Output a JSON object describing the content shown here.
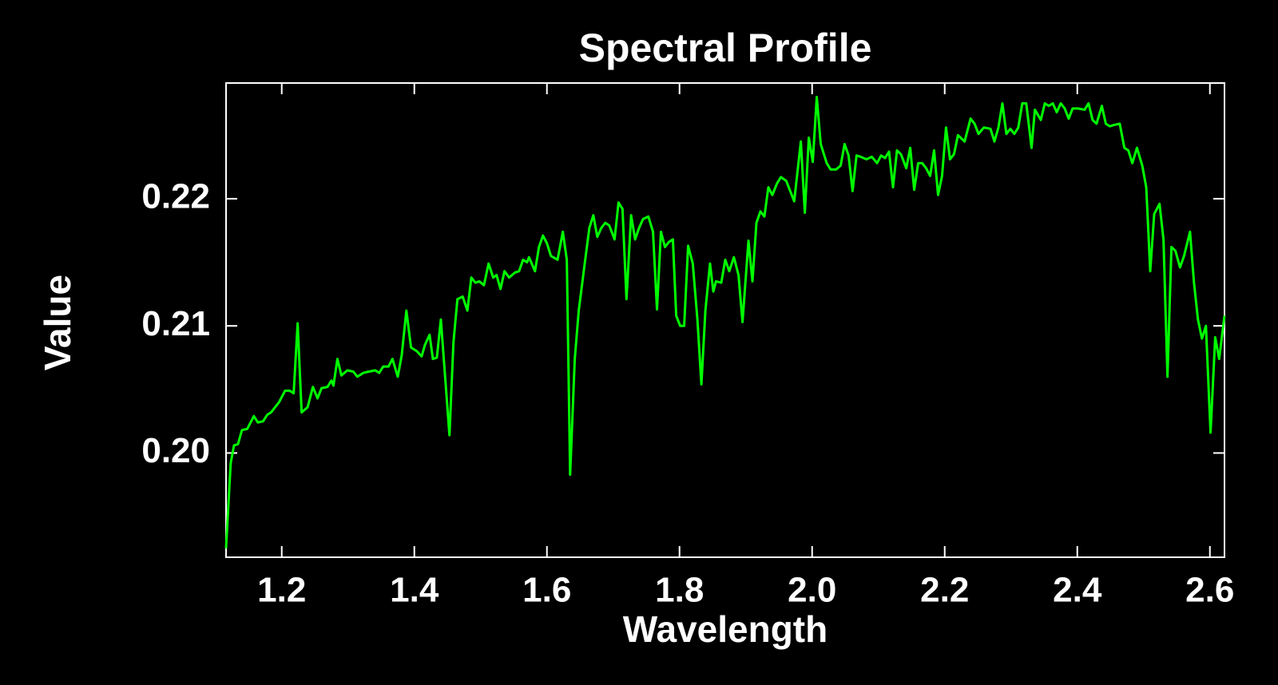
{
  "chart_data": {
    "type": "line",
    "title": "Spectral Profile",
    "x_label": "Wavelength",
    "y_label": "Value",
    "color": "#00ff00",
    "xlim": [
      1.116,
      2.622
    ],
    "ylim": [
      0.1918,
      0.2291
    ],
    "xticks": [
      1.2,
      1.4,
      1.6,
      1.8,
      {
        "value": 2,
        "label": "2.0"
      },
      2.2,
      2.4,
      2.6
    ],
    "yticks": [
      {
        "value": 0.2,
        "label": "0.20"
      },
      0.21,
      0.22
    ],
    "x": [
      1.116,
      1.123,
      1.128,
      1.134,
      1.14,
      1.148,
      1.158,
      1.164,
      1.172,
      1.178,
      1.184,
      1.196,
      1.205,
      1.212,
      1.218,
      1.224,
      1.23,
      1.239,
      1.247,
      1.254,
      1.26,
      1.269,
      1.275,
      1.278,
      1.284,
      1.29,
      1.299,
      1.308,
      1.314,
      1.323,
      1.331,
      1.341,
      1.347,
      1.353,
      1.361,
      1.367,
      1.375,
      1.381,
      1.388,
      1.395,
      1.404,
      1.411,
      1.416,
      1.423,
      1.428,
      1.434,
      1.44,
      1.447,
      1.453,
      1.459,
      1.465,
      1.473,
      1.48,
      1.486,
      1.492,
      1.498,
      1.505,
      1.512,
      1.519,
      1.524,
      1.53,
      1.536,
      1.543,
      1.552,
      1.558,
      1.564,
      1.57,
      1.573,
      1.582,
      1.588,
      1.594,
      1.6,
      1.606,
      1.616,
      1.624,
      1.63,
      1.635,
      1.642,
      1.648,
      1.657,
      1.664,
      1.67,
      1.676,
      1.682,
      1.688,
      1.694,
      1.702,
      1.708,
      1.714,
      1.72,
      1.727,
      1.733,
      1.739,
      1.745,
      1.753,
      1.76,
      1.766,
      1.772,
      1.778,
      1.784,
      1.79,
      1.795,
      1.801,
      1.807,
      1.813,
      1.82,
      1.827,
      1.833,
      1.839,
      1.846,
      1.851,
      1.855,
      1.863,
      1.869,
      1.875,
      1.882,
      1.889,
      1.895,
      1.904,
      1.91,
      1.916,
      1.922,
      1.928,
      1.934,
      1.94,
      1.947,
      1.953,
      1.961,
      1.967,
      1.973,
      1.983,
      1.989,
      1.995,
      2.001,
      2.007,
      2.013,
      2.022,
      2.028,
      2.036,
      2.043,
      2.049,
      2.055,
      2.061,
      2.067,
      2.073,
      2.082,
      2.09,
      2.098,
      2.104,
      2.11,
      2.116,
      2.122,
      2.128,
      2.134,
      2.142,
      2.148,
      2.154,
      2.16,
      2.166,
      2.172,
      2.178,
      2.184,
      2.19,
      2.196,
      2.202,
      2.208,
      2.214,
      2.22,
      2.23,
      2.239,
      2.245,
      2.251,
      2.259,
      2.269,
      2.275,
      2.281,
      2.287,
      2.293,
      2.299,
      2.305,
      2.311,
      2.317,
      2.323,
      2.331,
      2.336,
      2.345,
      2.351,
      2.357,
      2.363,
      2.369,
      2.375,
      2.381,
      2.387,
      2.393,
      2.401,
      2.411,
      2.417,
      2.423,
      2.429,
      2.437,
      2.443,
      2.449,
      2.455,
      2.464,
      2.471,
      2.477,
      2.483,
      2.49,
      2.498,
      2.504,
      2.51,
      2.516,
      2.524,
      2.53,
      2.536,
      2.542,
      2.548,
      2.555,
      2.561,
      2.57,
      2.576,
      2.582,
      2.588,
      2.594,
      2.601,
      2.608,
      2.614,
      2.622
    ],
    "values": [
      0.1925,
      0.1992,
      0.2006,
      0.2007,
      0.2018,
      0.2019,
      0.2029,
      0.2024,
      0.2025,
      0.203,
      0.2032,
      0.204,
      0.2049,
      0.2049,
      0.2047,
      0.2102,
      0.2032,
      0.2036,
      0.2052,
      0.2043,
      0.2051,
      0.2052,
      0.2057,
      0.2053,
      0.2074,
      0.2061,
      0.2065,
      0.2064,
      0.206,
      0.2063,
      0.2064,
      0.2065,
      0.2063,
      0.2068,
      0.2068,
      0.2074,
      0.206,
      0.2077,
      0.2112,
      0.2083,
      0.208,
      0.2076,
      0.2085,
      0.2093,
      0.2074,
      0.2075,
      0.2105,
      0.2056,
      0.2014,
      0.2087,
      0.2121,
      0.2123,
      0.2112,
      0.2138,
      0.2134,
      0.2135,
      0.2132,
      0.2149,
      0.2138,
      0.214,
      0.2129,
      0.2143,
      0.2138,
      0.2142,
      0.2143,
      0.2152,
      0.215,
      0.2154,
      0.2143,
      0.2162,
      0.2171,
      0.2165,
      0.2155,
      0.2152,
      0.2174,
      0.2152,
      0.1983,
      0.2074,
      0.2112,
      0.2149,
      0.2177,
      0.2187,
      0.217,
      0.2177,
      0.2181,
      0.2179,
      0.2168,
      0.2197,
      0.2192,
      0.2121,
      0.2187,
      0.2168,
      0.2177,
      0.2184,
      0.2186,
      0.2174,
      0.2113,
      0.2174,
      0.2162,
      0.2166,
      0.2168,
      0.2108,
      0.21,
      0.21,
      0.2163,
      0.2149,
      0.2105,
      0.2054,
      0.2112,
      0.2149,
      0.2127,
      0.2135,
      0.2134,
      0.2152,
      0.2143,
      0.2154,
      0.214,
      0.2103,
      0.2167,
      0.2135,
      0.2181,
      0.219,
      0.2186,
      0.2209,
      0.2203,
      0.2212,
      0.2217,
      0.2214,
      0.2206,
      0.2198,
      0.2245,
      0.2189,
      0.2248,
      0.2229,
      0.228,
      0.2243,
      0.2228,
      0.2223,
      0.2223,
      0.2226,
      0.2243,
      0.2234,
      0.2206,
      0.2234,
      0.2233,
      0.2231,
      0.2233,
      0.2228,
      0.2234,
      0.2232,
      0.2237,
      0.2209,
      0.2238,
      0.2235,
      0.2224,
      0.224,
      0.2207,
      0.2228,
      0.2228,
      0.2224,
      0.2218,
      0.2238,
      0.2203,
      0.2218,
      0.2256,
      0.2231,
      0.2235,
      0.225,
      0.2245,
      0.2263,
      0.2259,
      0.2251,
      0.2256,
      0.2255,
      0.2245,
      0.2256,
      0.2275,
      0.2251,
      0.2255,
      0.2251,
      0.2256,
      0.2275,
      0.2275,
      0.224,
      0.227,
      0.2262,
      0.2275,
      0.2273,
      0.2275,
      0.2268,
      0.2275,
      0.2271,
      0.2263,
      0.2271,
      0.2271,
      0.227,
      0.2275,
      0.2262,
      0.2259,
      0.2273,
      0.2259,
      0.2257,
      0.2258,
      0.2259,
      0.224,
      0.2238,
      0.2228,
      0.224,
      0.2226,
      0.2209,
      0.2143,
      0.2188,
      0.2196,
      0.2168,
      0.206,
      0.2162,
      0.2159,
      0.2146,
      0.2155,
      0.2174,
      0.2134,
      0.2105,
      0.209,
      0.21,
      0.2016,
      0.2091,
      0.2074,
      0.2108
    ]
  }
}
